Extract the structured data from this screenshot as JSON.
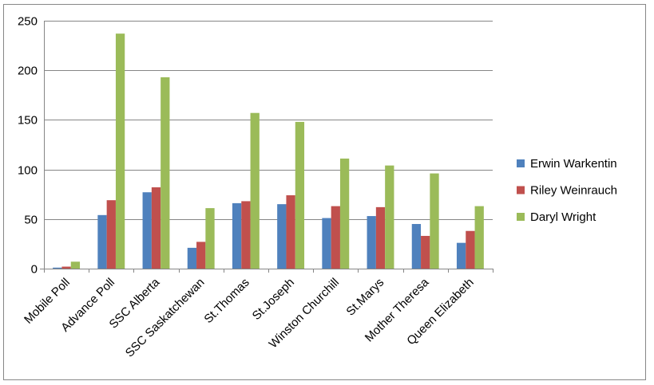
{
  "chart_data": {
    "type": "bar",
    "title": "",
    "xlabel": "",
    "ylabel": "",
    "ylim": [
      0,
      250
    ],
    "yticks": [
      0,
      50,
      100,
      150,
      200,
      250
    ],
    "grid": true,
    "legend_position": "right",
    "categories": [
      "Mobile Poll",
      "Advance Poll",
      "SSC Alberta",
      "SSC Saskatchewan",
      "St.Thomas",
      "St.Joseph",
      "Winston Churchill",
      "St.Marys",
      "Mother Theresa",
      "Queen Elizabeth"
    ],
    "series": [
      {
        "name": "Erwin Warkentin",
        "color": "#4F81BD",
        "values": [
          1,
          54,
          77,
          21,
          66,
          65,
          51,
          53,
          45,
          26
        ]
      },
      {
        "name": "Riley Weinrauch",
        "color": "#C0504D",
        "values": [
          2,
          69,
          82,
          27,
          68,
          74,
          63,
          62,
          33,
          38
        ]
      },
      {
        "name": "Daryl Wright",
        "color": "#9BBB59",
        "values": [
          7,
          237,
          193,
          61,
          157,
          148,
          111,
          104,
          96,
          63
        ]
      }
    ]
  }
}
